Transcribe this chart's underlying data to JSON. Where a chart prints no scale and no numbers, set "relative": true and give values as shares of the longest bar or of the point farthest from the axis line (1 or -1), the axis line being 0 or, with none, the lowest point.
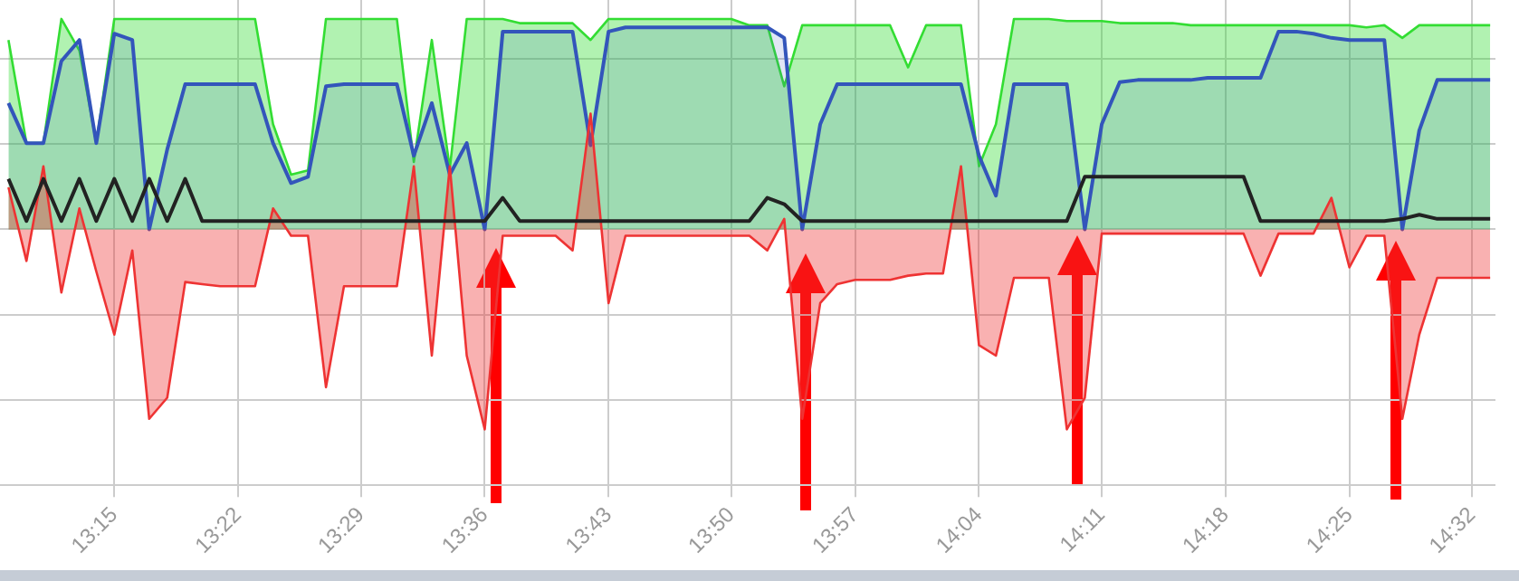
{
  "chart_data": {
    "type": "area",
    "relative": true,
    "grid": true,
    "x": [
      13.15,
      13.167,
      13.183,
      13.2,
      13.217,
      13.233,
      13.25,
      13.267,
      13.283,
      13.3,
      13.317,
      13.333,
      13.35,
      13.367,
      13.383,
      13.4,
      13.417,
      13.433,
      13.45,
      13.467,
      13.483,
      13.5,
      13.517,
      13.533,
      13.55,
      13.567,
      13.583,
      13.6,
      13.617,
      13.633,
      13.65,
      13.667,
      13.683,
      13.7,
      13.717,
      13.733,
      13.75,
      13.767,
      13.783,
      13.8,
      13.817,
      13.833,
      13.85,
      13.867,
      13.883,
      13.9,
      13.917,
      13.933,
      13.95,
      13.967,
      13.983,
      14,
      14.017,
      14.033,
      14.05,
      14.067,
      14.083,
      14.1,
      14.117,
      14.133,
      14.15,
      14.167,
      14.183,
      14.2,
      14.217,
      14.233,
      14.25,
      14.267,
      14.283,
      14.3,
      14.317,
      14.333,
      14.35,
      14.367,
      14.383,
      14.4,
      14.417,
      14.433,
      14.45,
      14.467,
      14.483,
      14.5,
      14.517,
      14.533,
      14.55
    ],
    "xlim": [
      13.142,
      14.555
    ],
    "xticks": [
      {
        "value": 13.25,
        "label": "13:15"
      },
      {
        "value": 13.367,
        "label": "13:22"
      },
      {
        "value": 13.483,
        "label": "13:29"
      },
      {
        "value": 13.6,
        "label": "13:36"
      },
      {
        "value": 13.717,
        "label": "13:43"
      },
      {
        "value": 13.833,
        "label": "13:50"
      },
      {
        "value": 13.95,
        "label": "13:57"
      },
      {
        "value": 14.067,
        "label": "14:04"
      },
      {
        "value": 14.183,
        "label": "14:11"
      },
      {
        "value": 14.3,
        "label": "14:18"
      },
      {
        "value": 14.417,
        "label": "14:25"
      },
      {
        "value": 14.533,
        "label": "14:32"
      }
    ],
    "series": [
      {
        "type": "area",
        "color": "#33dd33",
        "values": [
          0.9,
          0.41,
          0.41,
          1.0,
          0.85,
          0.41,
          1.0,
          1.0,
          1.0,
          1.0,
          1.0,
          1.0,
          1.0,
          1.0,
          1.0,
          0.5,
          0.26,
          0.28,
          1.0,
          1.0,
          1.0,
          1.0,
          1.0,
          0.32,
          0.9,
          0.29,
          1.0,
          1.0,
          1.0,
          0.98,
          0.98,
          0.98,
          0.98,
          0.9,
          1.0,
          1.0,
          1.0,
          1.0,
          1.0,
          1.0,
          1.0,
          1.0,
          0.97,
          0.97,
          0.68,
          0.97,
          0.97,
          0.97,
          0.97,
          0.97,
          0.97,
          0.77,
          0.97,
          0.97,
          0.97,
          0.3,
          0.5,
          1.0,
          1.0,
          1.0,
          0.99,
          0.99,
          0.99,
          0.98,
          0.98,
          0.98,
          0.98,
          0.97,
          0.97,
          0.97,
          0.97,
          0.97,
          0.97,
          0.97,
          0.97,
          0.97,
          0.97,
          0.96,
          0.97,
          0.91,
          0.97,
          0.97,
          0.97,
          0.97,
          0.97
        ]
      },
      {
        "type": "area",
        "color": "#3355bb",
        "values": [
          0.6,
          0.41,
          0.41,
          0.8,
          0.9,
          0.41,
          0.93,
          0.9,
          0,
          0.38,
          0.69,
          0.69,
          0.69,
          0.69,
          0.69,
          0.41,
          0.22,
          0.25,
          0.68,
          0.69,
          0.69,
          0.69,
          0.69,
          0.35,
          0.6,
          0.26,
          0.41,
          0,
          0.94,
          0.94,
          0.94,
          0.94,
          0.94,
          0.4,
          0.94,
          0.96,
          0.96,
          0.96,
          0.96,
          0.96,
          0.96,
          0.96,
          0.96,
          0.96,
          0.91,
          0,
          0.5,
          0.69,
          0.69,
          0.69,
          0.69,
          0.69,
          0.69,
          0.69,
          0.69,
          0.35,
          0.16,
          0.69,
          0.69,
          0.69,
          0.69,
          0,
          0.5,
          0.7,
          0.71,
          0.71,
          0.71,
          0.71,
          0.72,
          0.72,
          0.72,
          0.72,
          0.94,
          0.94,
          0.93,
          0.91,
          0.9,
          0.9,
          0.9,
          0,
          0.47,
          0.71,
          0.71,
          0.71,
          0.71
        ]
      },
      {
        "type": "area",
        "color": "#ee3333",
        "values": [
          0.2,
          -0.15,
          0.3,
          -0.3,
          0.1,
          -0.2,
          -0.5,
          -0.1,
          -0.9,
          -0.8,
          -0.25,
          -0.26,
          -0.27,
          -0.27,
          -0.27,
          0.1,
          -0.03,
          -0.03,
          -0.75,
          -0.27,
          -0.27,
          -0.27,
          -0.27,
          0.3,
          -0.6,
          0.3,
          -0.6,
          -0.95,
          -0.03,
          -0.03,
          -0.03,
          -0.03,
          -0.1,
          0.55,
          -0.35,
          -0.03,
          -0.03,
          -0.03,
          -0.03,
          -0.03,
          -0.03,
          -0.03,
          -0.03,
          -0.1,
          0.05,
          -0.9,
          -0.35,
          -0.26,
          -0.24,
          -0.24,
          -0.24,
          -0.22,
          -0.21,
          -0.21,
          0.3,
          -0.55,
          -0.6,
          -0.23,
          -0.23,
          -0.23,
          -0.95,
          -0.8,
          -0.02,
          -0.02,
          -0.02,
          -0.02,
          -0.02,
          -0.02,
          -0.02,
          -0.02,
          -0.02,
          -0.22,
          -0.02,
          -0.02,
          -0.02,
          0.15,
          -0.18,
          -0.03,
          -0.03,
          -0.9,
          -0.5,
          -0.23,
          -0.23,
          -0.23,
          -0.23
        ]
      },
      {
        "type": "line",
        "color": "#222222",
        "values": [
          0.24,
          0.04,
          0.24,
          0.04,
          0.24,
          0.04,
          0.24,
          0.04,
          0.24,
          0.04,
          0.24,
          0.04,
          0.04,
          0.04,
          0.04,
          0.04,
          0.04,
          0.04,
          0.04,
          0.04,
          0.04,
          0.04,
          0.04,
          0.04,
          0.04,
          0.04,
          0.04,
          0.04,
          0.15,
          0.04,
          0.04,
          0.04,
          0.04,
          0.04,
          0.04,
          0.04,
          0.04,
          0.04,
          0.04,
          0.04,
          0.04,
          0.04,
          0.04,
          0.15,
          0.12,
          0.04,
          0.04,
          0.04,
          0.04,
          0.04,
          0.04,
          0.04,
          0.04,
          0.04,
          0.04,
          0.04,
          0.04,
          0.04,
          0.04,
          0.04,
          0.04,
          0.25,
          0.25,
          0.25,
          0.25,
          0.25,
          0.25,
          0.25,
          0.25,
          0.25,
          0.25,
          0.04,
          0.04,
          0.04,
          0.04,
          0.04,
          0.04,
          0.04,
          0.04,
          0.05,
          0.07,
          0.05,
          0.05,
          0.05,
          0.05
        ]
      }
    ]
  }
}
